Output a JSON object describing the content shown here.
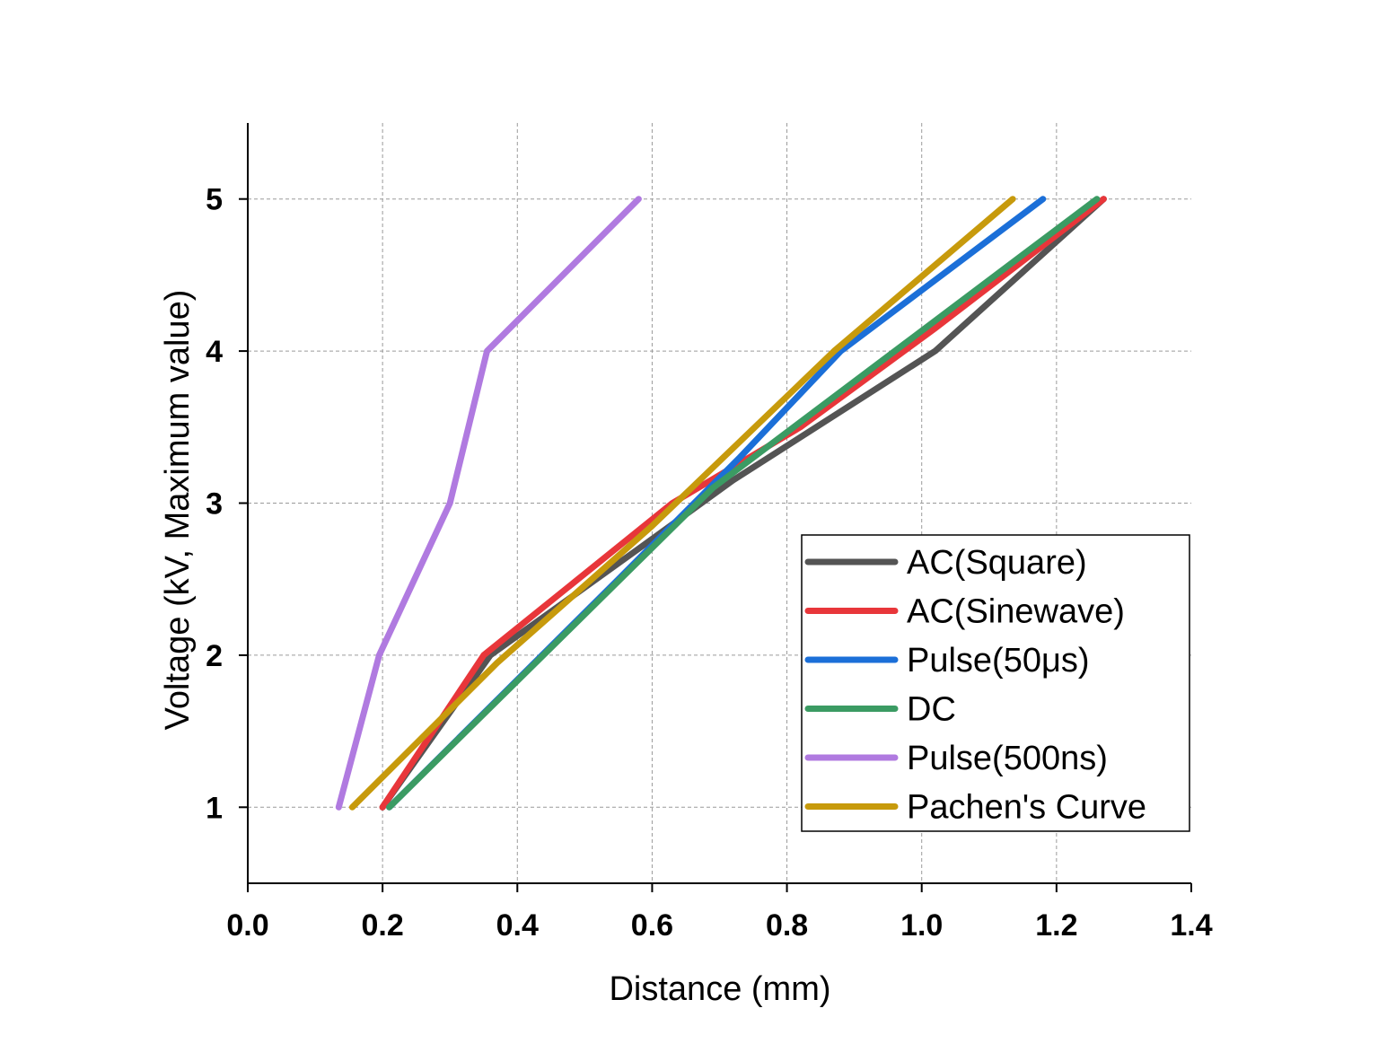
{
  "chart_data": {
    "type": "line",
    "title": "",
    "xlabel": "Distance (mm)",
    "ylabel": "Voltage (kV, Maximum value)",
    "xlim": [
      0.0,
      1.4
    ],
    "ylim": [
      0.5,
      5.5
    ],
    "x_ticks": [
      "0.0",
      "0.2",
      "0.4",
      "0.6",
      "0.8",
      "1.0",
      "1.2",
      "1.4"
    ],
    "y_ticks": [
      "1",
      "2",
      "3",
      "4",
      "5"
    ],
    "grid": true,
    "legend_position": "bottom-right",
    "series": [
      {
        "name": "AC(Square)",
        "color": "#545454",
        "points": [
          [
            0.2,
            1
          ],
          [
            0.36,
            2
          ],
          [
            0.58,
            2.7
          ],
          [
            0.72,
            3.15
          ],
          [
            1.02,
            4
          ],
          [
            1.27,
            5
          ]
        ]
      },
      {
        "name": "AC(Sinewave)",
        "color": "#e8363a",
        "points": [
          [
            0.2,
            1
          ],
          [
            0.35,
            2
          ],
          [
            0.63,
            3
          ],
          [
            0.82,
            3.5
          ],
          [
            1.02,
            4.15
          ],
          [
            1.27,
            5
          ]
        ]
      },
      {
        "name": "Pulse(50μs)",
        "color": "#1b6fd8",
        "points": [
          [
            0.21,
            1
          ],
          [
            0.55,
            2.5
          ],
          [
            0.73,
            3.3
          ],
          [
            0.88,
            4
          ],
          [
            1.18,
            5
          ]
        ]
      },
      {
        "name": "DC",
        "color": "#3b9b63",
        "points": [
          [
            0.21,
            1
          ],
          [
            0.69,
            3.1
          ],
          [
            1.26,
            5
          ]
        ]
      },
      {
        "name": "Pulse(500ns)",
        "color": "#b07ae0",
        "points": [
          [
            0.135,
            1
          ],
          [
            0.195,
            2
          ],
          [
            0.3,
            3
          ],
          [
            0.355,
            4
          ],
          [
            0.58,
            5
          ]
        ]
      },
      {
        "name": "Pachen's Curve",
        "color": "#c79a0c",
        "points": [
          [
            0.155,
            1
          ],
          [
            0.37,
            1.95
          ],
          [
            0.6,
            2.85
          ],
          [
            0.87,
            4
          ],
          [
            1.135,
            5
          ]
        ]
      }
    ]
  }
}
